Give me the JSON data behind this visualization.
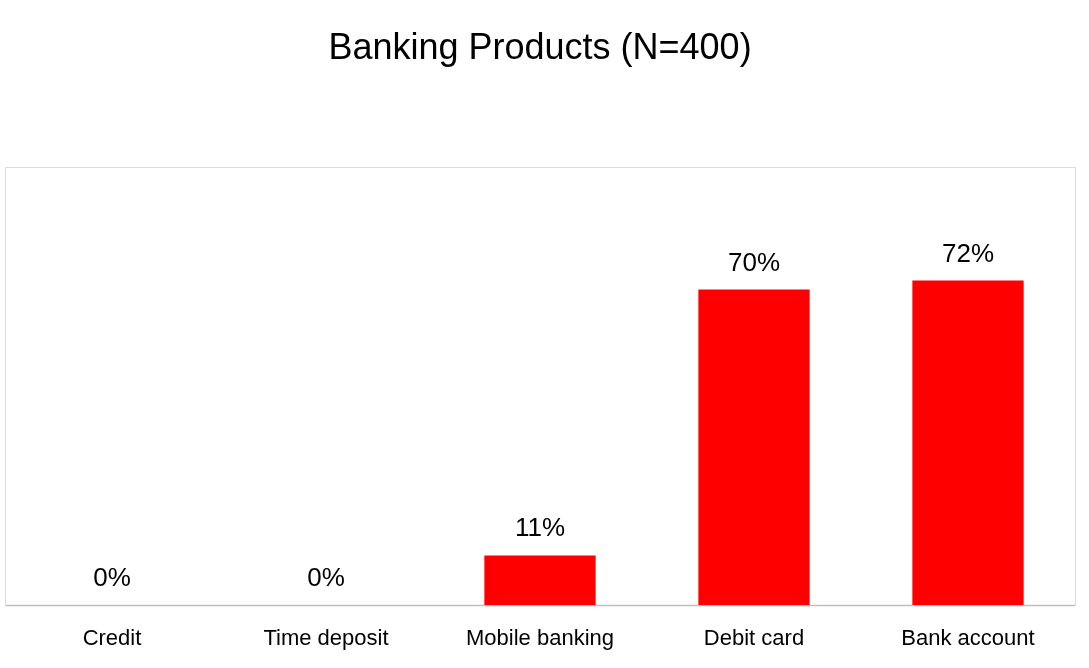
{
  "chart_data": {
    "type": "bar",
    "title": "Banking Products (N=400)",
    "categories": [
      "Credit",
      "Time deposit",
      "Mobile banking",
      "Debit card",
      "Bank account"
    ],
    "values": [
      0,
      0,
      11,
      70,
      72
    ],
    "value_labels": [
      "0%",
      "0%",
      "11%",
      "70%",
      "72%"
    ],
    "color": "#ff0000"
  }
}
